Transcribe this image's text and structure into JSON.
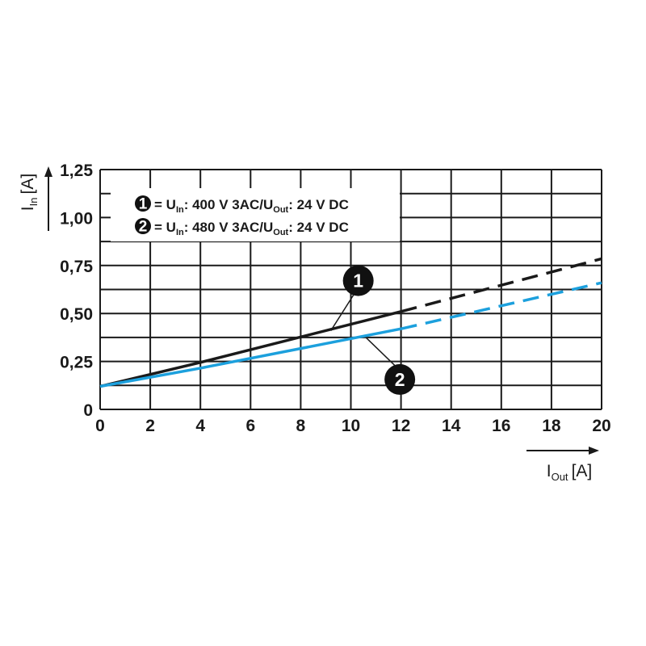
{
  "chart_data": {
    "type": "line",
    "x_ticks": [
      "0",
      "2",
      "4",
      "6",
      "8",
      "10",
      "12",
      "14",
      "16",
      "18",
      "20"
    ],
    "y_ticks": [
      "0",
      "0,25",
      "0,50",
      "0,75",
      "1,00",
      "1,25"
    ],
    "xlim": [
      0,
      20
    ],
    "ylim": [
      0,
      1.25
    ],
    "x_grid_step": 2,
    "y_grid_step": 0.125,
    "grid": true,
    "legend_position": "top-left",
    "xlabel": {
      "symbol": "I",
      "sub": "Out",
      "unit": "[A]"
    },
    "ylabel": {
      "symbol": "I",
      "sub": "In",
      "unit": "[A]"
    },
    "series": [
      {
        "marker": "1",
        "color": "#1a1a1a",
        "solid": {
          "x": [
            0,
            4,
            12
          ],
          "y": [
            0.12,
            0.245,
            0.51
          ]
        },
        "dashed": {
          "x": [
            12,
            20
          ],
          "y": [
            0.51,
            0.785
          ]
        },
        "legend": {
          "p1": " = U",
          "sub1": "In",
          "p2": ": 400 V 3AC/U",
          "sub2": "Out",
          "p3": ": 24 V DC"
        },
        "callout": {
          "x": 9.2,
          "y": 0.41
        }
      },
      {
        "marker": "2",
        "color": "#1ca0dd",
        "solid": {
          "x": [
            0,
            4,
            12
          ],
          "y": [
            0.12,
            0.215,
            0.42
          ]
        },
        "dashed": {
          "x": [
            12,
            20
          ],
          "y": [
            0.42,
            0.66
          ]
        },
        "legend": {
          "p1": " = U",
          "sub1": "In",
          "p2": ": 480 V 3AC/U",
          "sub2": "Out",
          "p3": ": 24 V DC"
        },
        "callout": {
          "x": 10.6,
          "y": 0.375
        }
      }
    ]
  }
}
